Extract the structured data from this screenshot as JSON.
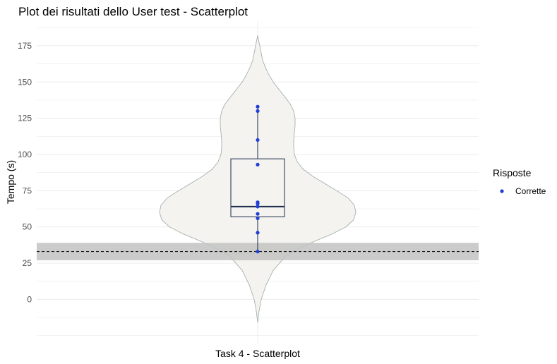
{
  "chart_data": {
    "type": "violin",
    "title": "Plot dei risultati dello User test - Scatterplot",
    "xlabel": "",
    "ylabel": "Tempo (s)",
    "categories": [
      "Task 4 - Scatterplot"
    ],
    "ylim": [
      -30,
      192
    ],
    "yticks": [
      0,
      25,
      50,
      75,
      100,
      125,
      150,
      175
    ],
    "grid": true,
    "legend": {
      "title": "Risposte",
      "position": "right",
      "items": [
        {
          "label": "Corrette",
          "color": "#1f3fd6"
        }
      ]
    },
    "points": [
      {
        "label": "Corrette",
        "values": [
          133,
          130,
          110,
          93,
          67,
          66,
          64,
          59,
          56,
          46,
          33
        ]
      }
    ],
    "boxplot": {
      "lower_whisker": 33,
      "q1": 57,
      "median": 64,
      "q3": 97,
      "upper_whisker": 133
    },
    "violin_range": [
      -16,
      182
    ],
    "reference_line": {
      "value": 33,
      "style": "dashed",
      "band": [
        27,
        39
      ]
    },
    "colors": {
      "violin_fill": "#f4f3f0",
      "violin_stroke": "#9aaaa5",
      "box_stroke": "#1c2a4a",
      "point": "#1f3fd6",
      "band": "#c2c2c2",
      "grid": "#ebebeb"
    }
  }
}
